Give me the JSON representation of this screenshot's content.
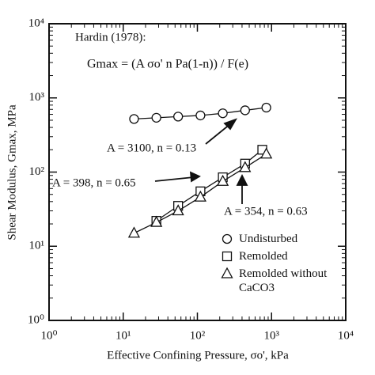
{
  "chart_data": {
    "type": "scatter",
    "annotations": {
      "reference": "Hardin (1978):",
      "formula": "Gmax = (A σo' n Pa(1-n)) / F(e)",
      "fit_undisturbed": "A = 3100, n = 0.13",
      "fit_remolded": "A = 398, n = 0.65",
      "fit_remolded_no_caco3": "A = 354, n = 0.63"
    },
    "x_label": "Effective Confining Pressure, σo', kPa",
    "y_label": "Shear Modulus, Gmax, MPa",
    "log_x": true,
    "log_y": true,
    "xlim": [
      1,
      10000
    ],
    "ylim": [
      1,
      10000
    ],
    "xticks": [
      {
        "value": 1,
        "label": "10⁰"
      },
      {
        "value": 10,
        "label": "10¹"
      },
      {
        "value": 100,
        "label": "10²"
      },
      {
        "value": 1000,
        "label": "10³"
      },
      {
        "value": 10000,
        "label": "10⁴"
      }
    ],
    "yticks": [
      {
        "value": 1,
        "label": "10⁰"
      },
      {
        "value": 10,
        "label": "10¹"
      },
      {
        "value": 100,
        "label": "10²"
      },
      {
        "value": 1000,
        "label": "10³"
      },
      {
        "value": 10000,
        "label": "10⁴"
      }
    ],
    "series": [
      {
        "name": "Undisturbed",
        "marker": "circle",
        "color": "#111111",
        "x": [
          14,
          28,
          55,
          110,
          220,
          440,
          850
        ],
        "values": [
          520,
          540,
          560,
          580,
          620,
          680,
          740
        ]
      },
      {
        "name": "Remolded",
        "marker": "square",
        "color": "#111111",
        "x": [
          28,
          55,
          110,
          220,
          440,
          750
        ],
        "values": [
          22,
          35,
          55,
          85,
          130,
          200
        ]
      },
      {
        "name": "Remolded without CaCO3",
        "marker": "triangle",
        "color": "#111111",
        "x": [
          14,
          28,
          55,
          110,
          220,
          440,
          850
        ],
        "values": [
          15,
          21,
          30,
          46,
          75,
          115,
          175
        ]
      }
    ]
  }
}
